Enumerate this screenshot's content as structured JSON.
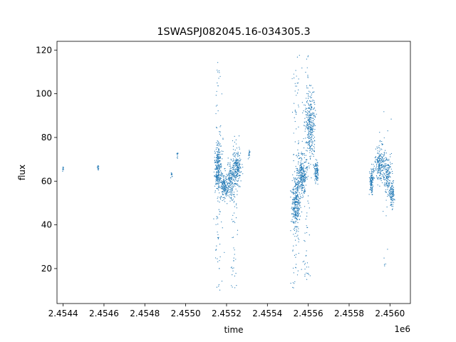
{
  "chart_data": {
    "type": "scatter",
    "title": "1SWASPJ082045.16-034305.3",
    "xlabel": "time",
    "ylabel": "flux",
    "x_offset_label": "1e6",
    "xlim": [
      2.45437,
      2.4561
    ],
    "ylim": [
      4,
      124
    ],
    "x_ticks": [
      2.4544,
      2.4546,
      2.4548,
      2.455,
      2.4552,
      2.4554,
      2.4556,
      2.4558,
      2.456
    ],
    "x_tick_labels": [
      "2.4544",
      "2.4546",
      "2.4548",
      "2.4550",
      "2.4552",
      "2.4554",
      "2.4556",
      "2.4558",
      "2.4560"
    ],
    "y_ticks": [
      20,
      40,
      60,
      80,
      100,
      120
    ],
    "y_tick_labels": [
      "20",
      "40",
      "60",
      "80",
      "100",
      "120"
    ],
    "grid": false,
    "marker_color": "#1f77b4",
    "clusters": [
      {
        "x_center": 2.4544,
        "x_spread": 1.5e-06,
        "y_mean": 65.5,
        "y_spread": 0.6,
        "n": 10
      },
      {
        "x_center": 2.45457,
        "x_spread": 2e-06,
        "y_mean": 66.5,
        "y_spread": 1.0,
        "n": 14
      },
      {
        "x_center": 2.45493,
        "x_spread": 2e-06,
        "y_mean": 62.5,
        "y_spread": 0.8,
        "n": 10
      },
      {
        "x_center": 2.45496,
        "x_spread": 2e-06,
        "y_mean": 72,
        "y_spread": 0.8,
        "n": 10
      },
      {
        "x_center": 2.45516,
        "x_spread": 8e-06,
        "y_mean": 66,
        "y_spread": 5,
        "n": 260
      },
      {
        "x_center": 2.45519,
        "x_spread": 1e-05,
        "y_mean": 58,
        "y_spread": 3,
        "n": 160
      },
      {
        "x_center": 2.45522,
        "x_spread": 1e-05,
        "y_mean": 60,
        "y_spread": 4,
        "n": 160
      },
      {
        "x_center": 2.45525,
        "x_spread": 1e-05,
        "y_mean": 66,
        "y_spread": 4,
        "n": 200
      },
      {
        "x_center": 2.45531,
        "x_spread": 3e-06,
        "y_mean": 72.5,
        "y_spread": 1,
        "n": 14
      },
      {
        "x_center": 2.45554,
        "x_spread": 1e-05,
        "y_mean": 50,
        "y_spread": 6,
        "n": 320
      },
      {
        "x_center": 2.45557,
        "x_spread": 1e-05,
        "y_mean": 63,
        "y_spread": 5,
        "n": 240
      },
      {
        "x_center": 2.45561,
        "x_spread": 1.2e-05,
        "y_mean": 86,
        "y_spread": 8,
        "n": 320
      },
      {
        "x_center": 2.45564,
        "x_spread": 5e-06,
        "y_mean": 64,
        "y_spread": 2,
        "n": 100
      },
      {
        "x_center": 2.45591,
        "x_spread": 5e-06,
        "y_mean": 60,
        "y_spread": 3,
        "n": 120
      },
      {
        "x_center": 2.45595,
        "x_spread": 1.2e-05,
        "y_mean": 68,
        "y_spread": 4,
        "n": 200
      },
      {
        "x_center": 2.45599,
        "x_spread": 1e-05,
        "y_mean": 62,
        "y_spread": 4,
        "n": 160
      },
      {
        "x_center": 2.45601,
        "x_spread": 5e-06,
        "y_mean": 54,
        "y_spread": 3,
        "n": 100
      }
    ],
    "outlier_ranges": [
      {
        "x_center": 2.45516,
        "x_spread": 1e-05,
        "y_min": 9,
        "y_max": 116,
        "n": 90
      },
      {
        "x_center": 2.45524,
        "x_spread": 1e-05,
        "y_min": 10,
        "y_max": 84,
        "n": 70
      },
      {
        "x_center": 2.45554,
        "x_spread": 1e-05,
        "y_min": 11,
        "y_max": 119,
        "n": 80
      },
      {
        "x_center": 2.45559,
        "x_spread": 1e-05,
        "y_min": 15,
        "y_max": 119,
        "n": 80
      },
      {
        "x_center": 2.45597,
        "x_spread": 2e-05,
        "y_min": 11,
        "y_max": 104,
        "n": 20
      }
    ]
  }
}
